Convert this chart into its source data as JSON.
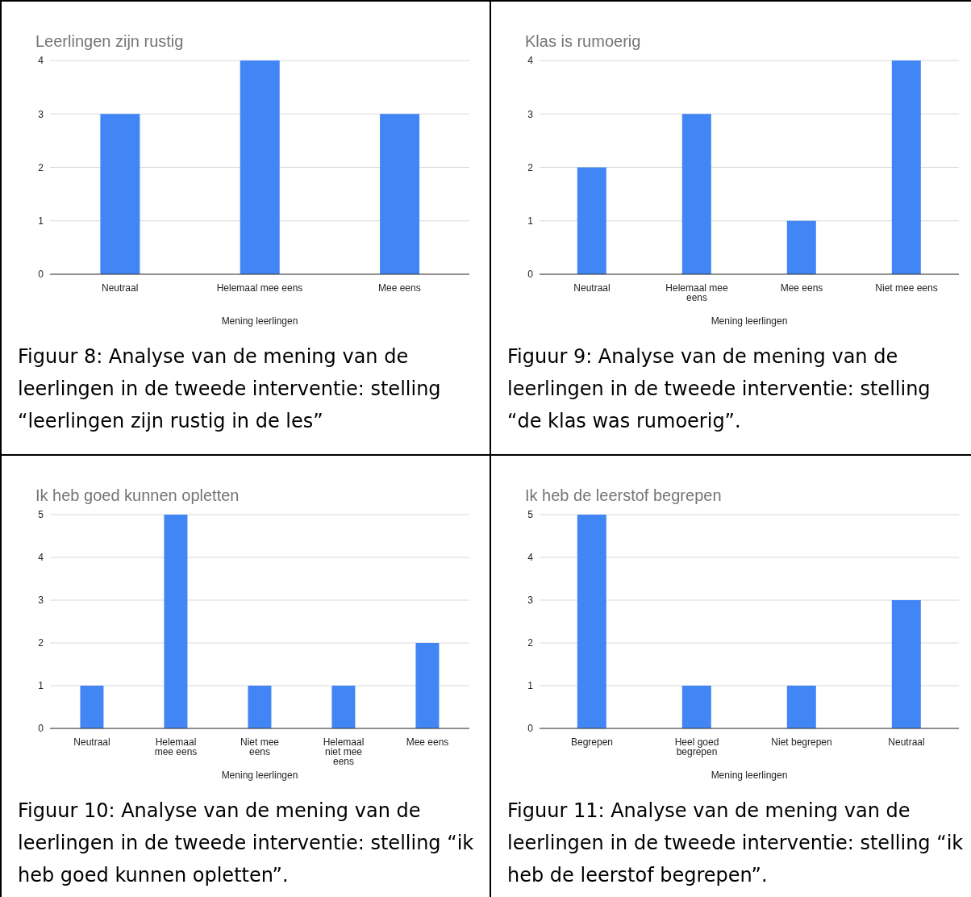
{
  "chart_data": [
    {
      "type": "bar",
      "title": "Leerlingen zijn rustig",
      "xlabel": "Mening leerlingen",
      "categories": [
        "Neutraal",
        "Helemaal mee eens",
        "Mee eens"
      ],
      "values": [
        3,
        4,
        3
      ],
      "color": "#4285f4",
      "ylim": [
        0,
        4
      ],
      "yticks": [
        0,
        1,
        2,
        3,
        4
      ],
      "grid": "y",
      "annotations": [
        "Figuur 8: Analyse van de mening van de leerlingen in de tweede interventie: stelling “leerlingen zijn rustig in de les”"
      ]
    },
    {
      "type": "bar",
      "title": "Klas is rumoerig",
      "xlabel": "Mening leerlingen",
      "categories": [
        "Neutraal",
        "Helemaal mee eens",
        "Mee eens",
        "Niet mee eens"
      ],
      "values": [
        2,
        3,
        1,
        4
      ],
      "color": "#4285f4",
      "ylim": [
        0,
        4
      ],
      "yticks": [
        0,
        1,
        2,
        3,
        4
      ],
      "grid": "y",
      "annotations": [
        "Figuur 9: Analyse van de mening van de leerlingen in de tweede interventie: stelling “de klas was rumoerig”."
      ]
    },
    {
      "type": "bar",
      "title": "Ik heb goed kunnen opletten",
      "xlabel": "Mening leerlingen",
      "categories": [
        "Neutraal",
        "Helemaal mee eens",
        "Niet mee eens",
        "Helemaal niet mee eens",
        "Mee eens"
      ],
      "values": [
        1,
        5,
        1,
        1,
        2
      ],
      "color": "#4285f4",
      "ylim": [
        0,
        5
      ],
      "yticks": [
        0,
        1,
        2,
        3,
        4,
        5
      ],
      "grid": "y",
      "annotations": [
        "Figuur 10: Analyse van de mening van de leerlingen in de tweede interventie: stelling “ik heb goed kunnen opletten”."
      ]
    },
    {
      "type": "bar",
      "title": "Ik heb de leerstof begrepen",
      "xlabel": "Mening leerlingen",
      "categories": [
        "Begrepen",
        "Heel goed begrepen",
        "Niet begrepen",
        "Neutraal"
      ],
      "values": [
        5,
        1,
        1,
        3
      ],
      "color": "#4285f4",
      "ylim": [
        0,
        5
      ],
      "yticks": [
        0,
        1,
        2,
        3,
        4,
        5
      ],
      "grid": "y",
      "annotations": [
        "Figuur 11: Analyse van de mening van de leerlingen in de tweede interventie: stelling “ik heb de leerstof begrepen”."
      ]
    }
  ]
}
